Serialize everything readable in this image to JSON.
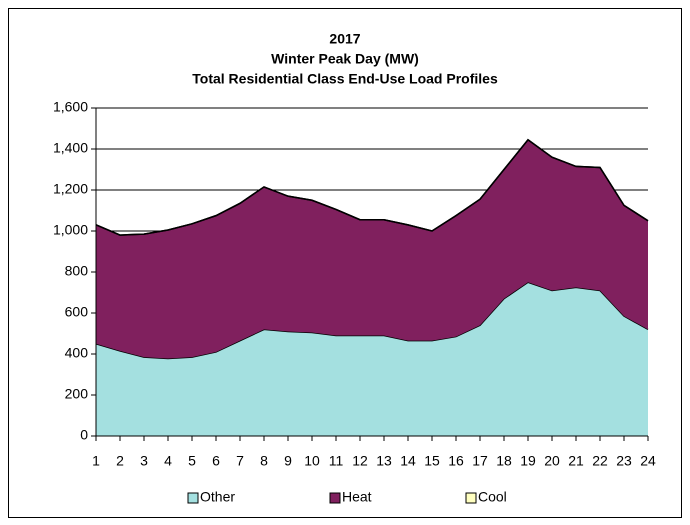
{
  "chart_data": {
    "type": "area",
    "stacked": true,
    "title_lines": [
      "2017",
      "Winter Peak Day (MW)",
      "Total Residential Class End-Use Load Profiles"
    ],
    "categories": [
      "1",
      "2",
      "3",
      "4",
      "5",
      "6",
      "7",
      "8",
      "9",
      "10",
      "11",
      "12",
      "13",
      "14",
      "15",
      "16",
      "17",
      "18",
      "19",
      "20",
      "21",
      "22",
      "23",
      "24"
    ],
    "series": [
      {
        "name": "Other",
        "color": "#a4e0e0",
        "values": [
          450,
          415,
          385,
          378,
          385,
          410,
          465,
          520,
          510,
          505,
          490,
          490,
          490,
          465,
          465,
          485,
          540,
          670,
          750,
          710,
          725,
          710,
          585,
          520
        ]
      },
      {
        "name": "Heat",
        "color": "#80205e",
        "values": [
          580,
          565,
          600,
          627,
          650,
          665,
          670,
          695,
          660,
          645,
          615,
          565,
          565,
          565,
          535,
          590,
          615,
          630,
          695,
          650,
          590,
          600,
          540,
          530
        ]
      },
      {
        "name": "Cool",
        "color": "#ffffc0",
        "values": [
          0,
          0,
          0,
          0,
          0,
          0,
          0,
          0,
          0,
          0,
          0,
          0,
          0,
          0,
          0,
          0,
          0,
          0,
          0,
          0,
          0,
          0,
          0,
          0
        ]
      }
    ],
    "ylim": [
      0,
      1600
    ],
    "yticks": [
      0,
      200,
      400,
      600,
      800,
      {
        "value": 1000,
        "label": "1,000"
      },
      {
        "value": 1200,
        "label": "1,200"
      },
      {
        "value": 1400,
        "label": "1,400"
      },
      {
        "value": 1600,
        "label": "1,600"
      }
    ],
    "grid": true,
    "legend": "bottom"
  }
}
